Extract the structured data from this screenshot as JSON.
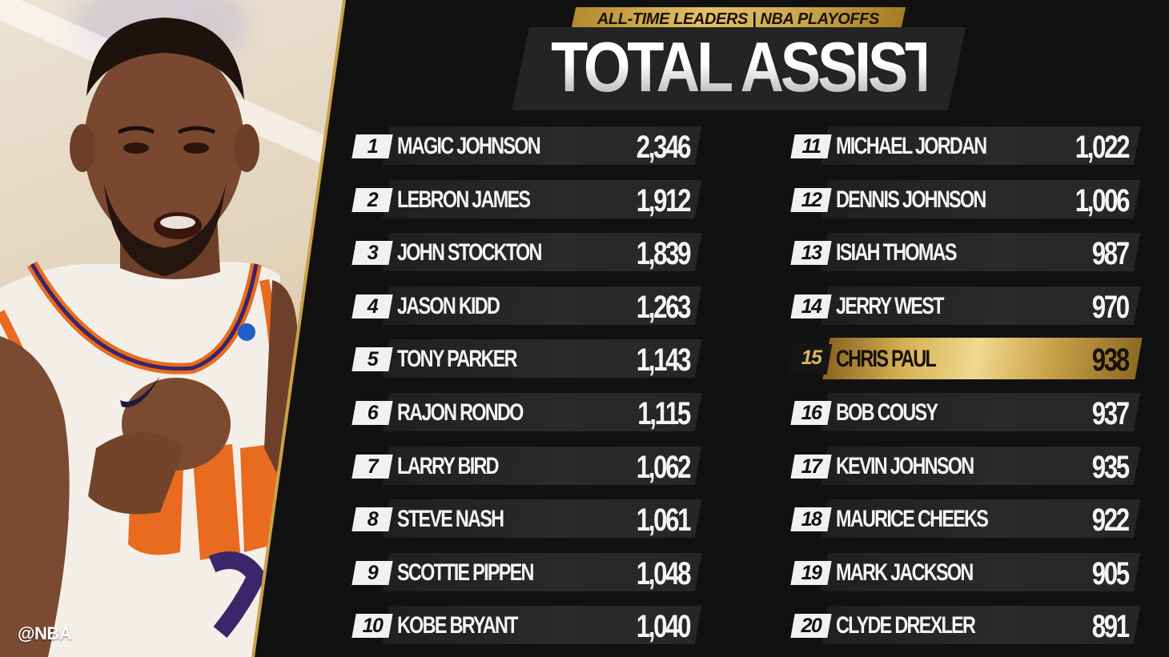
{
  "header": {
    "tag": "ALL-TIME LEADERS | NBA PLAYOFFS",
    "title": "TOTAL ASSISTS"
  },
  "photo": {
    "watermark": "@NBA"
  },
  "colors": {
    "gold": "#d6b256",
    "background": "#0f0f0f",
    "bar": "#262626",
    "suns_orange": "#e86b1f",
    "suns_purple": "#3a2669"
  },
  "leaders": [
    {
      "rank": "1",
      "name": "MAGIC JOHNSON",
      "assists": "2,346"
    },
    {
      "rank": "2",
      "name": "LEBRON JAMES",
      "assists": "1,912"
    },
    {
      "rank": "3",
      "name": "JOHN STOCKTON",
      "assists": "1,839"
    },
    {
      "rank": "4",
      "name": "JASON KIDD",
      "assists": "1,263"
    },
    {
      "rank": "5",
      "name": "TONY PARKER",
      "assists": "1,143"
    },
    {
      "rank": "6",
      "name": "RAJON RONDO",
      "assists": "1,115"
    },
    {
      "rank": "7",
      "name": "LARRY BIRD",
      "assists": "1,062"
    },
    {
      "rank": "8",
      "name": "STEVE NASH",
      "assists": "1,061"
    },
    {
      "rank": "9",
      "name": "SCOTTIE PIPPEN",
      "assists": "1,048"
    },
    {
      "rank": "10",
      "name": "KOBE BRYANT",
      "assists": "1,040"
    },
    {
      "rank": "11",
      "name": "MICHAEL JORDAN",
      "assists": "1,022"
    },
    {
      "rank": "12",
      "name": "DENNIS JOHNSON",
      "assists": "1,006"
    },
    {
      "rank": "13",
      "name": "ISIAH THOMAS",
      "assists": "987"
    },
    {
      "rank": "14",
      "name": "JERRY WEST",
      "assists": "970"
    },
    {
      "rank": "15",
      "name": "CHRIS PAUL",
      "assists": "938",
      "highlighted": true
    },
    {
      "rank": "16",
      "name": "BOB COUSY",
      "assists": "937"
    },
    {
      "rank": "17",
      "name": "KEVIN JOHNSON",
      "assists": "935"
    },
    {
      "rank": "18",
      "name": "MAURICE CHEEKS",
      "assists": "922"
    },
    {
      "rank": "19",
      "name": "MARK JACKSON",
      "assists": "905"
    },
    {
      "rank": "20",
      "name": "CLYDE DREXLER",
      "assists": "891"
    }
  ]
}
